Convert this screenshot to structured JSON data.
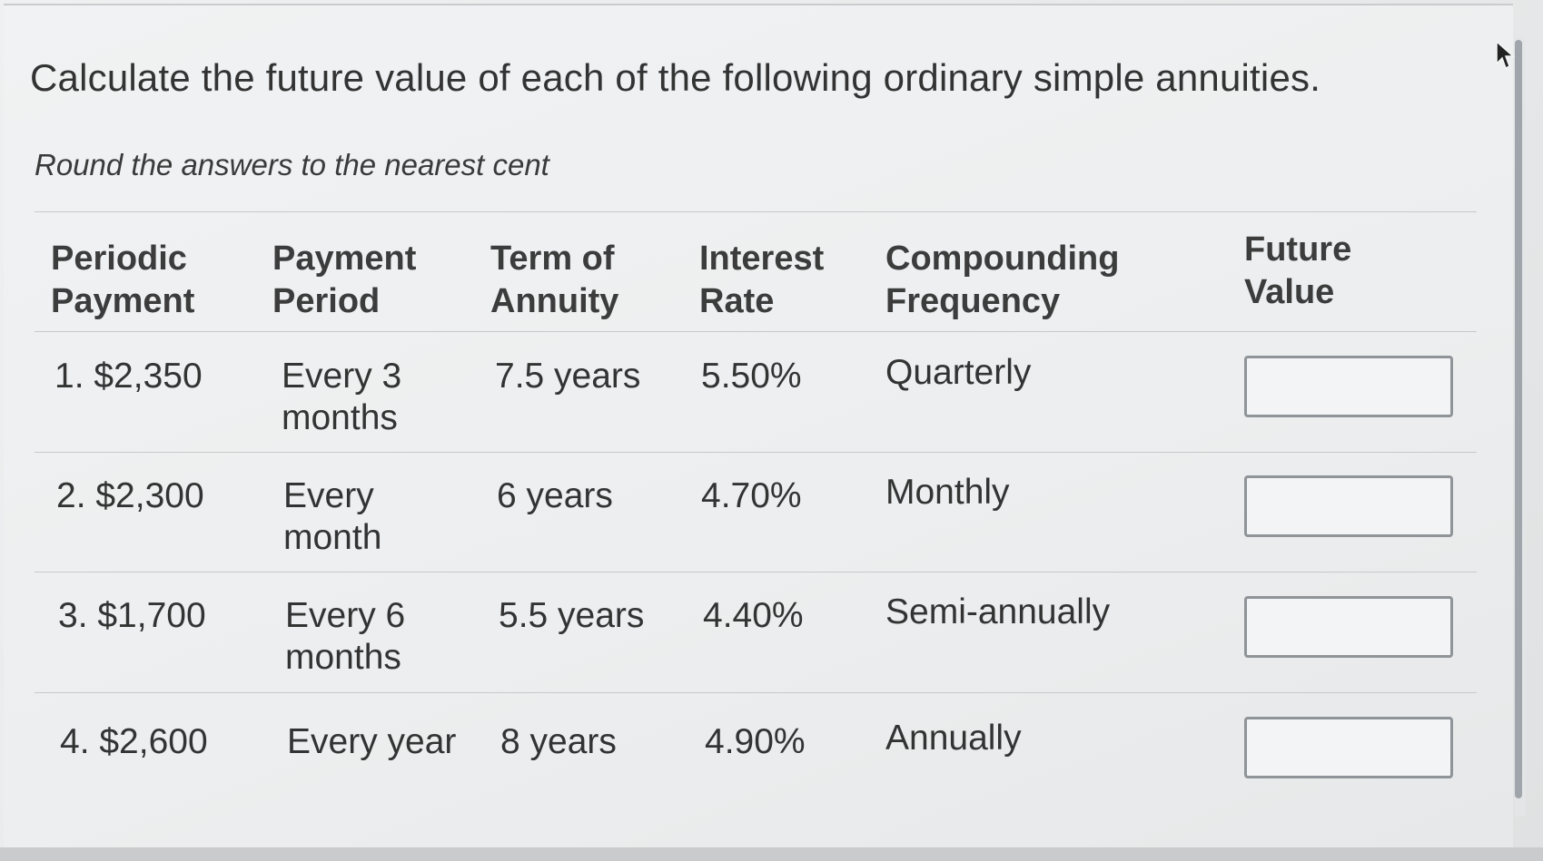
{
  "question": {
    "text": "Calculate the future value of each of the following ordinary simple annuities.",
    "instruction": "Round the answers to the nearest cent"
  },
  "table": {
    "headers": [
      {
        "line1": "Periodic",
        "line2": "Payment"
      },
      {
        "line1": "Payment",
        "line2": "Period"
      },
      {
        "line1": "Term of",
        "line2": "Annuity"
      },
      {
        "line1": "Interest",
        "line2": "Rate"
      },
      {
        "line1": "Compounding",
        "line2": "Frequency"
      },
      {
        "line1": "Future",
        "line2": "Value"
      }
    ],
    "rows": [
      {
        "payment": "1. $2,350",
        "period_line1": "Every 3",
        "period_line2": "months",
        "term": "7.5 years",
        "rate": "5.50%",
        "frequency": "Quarterly",
        "future_value": ""
      },
      {
        "payment": "2. $2,300",
        "period_line1": "Every",
        "period_line2": "month",
        "term": "6 years",
        "rate": "4.70%",
        "frequency": "Monthly",
        "future_value": ""
      },
      {
        "payment": "3. $1,700",
        "period_line1": "Every 6",
        "period_line2": "months",
        "term": "5.5 years",
        "rate": "4.40%",
        "frequency": "Semi-annually",
        "future_value": ""
      },
      {
        "payment": "4. $2,600",
        "period_line1": "Every year",
        "period_line2": "",
        "term": "8 years",
        "rate": "4.90%",
        "frequency": "Annually",
        "future_value": ""
      }
    ]
  },
  "icons": {
    "cursor": "mouse-pointer-icon"
  }
}
